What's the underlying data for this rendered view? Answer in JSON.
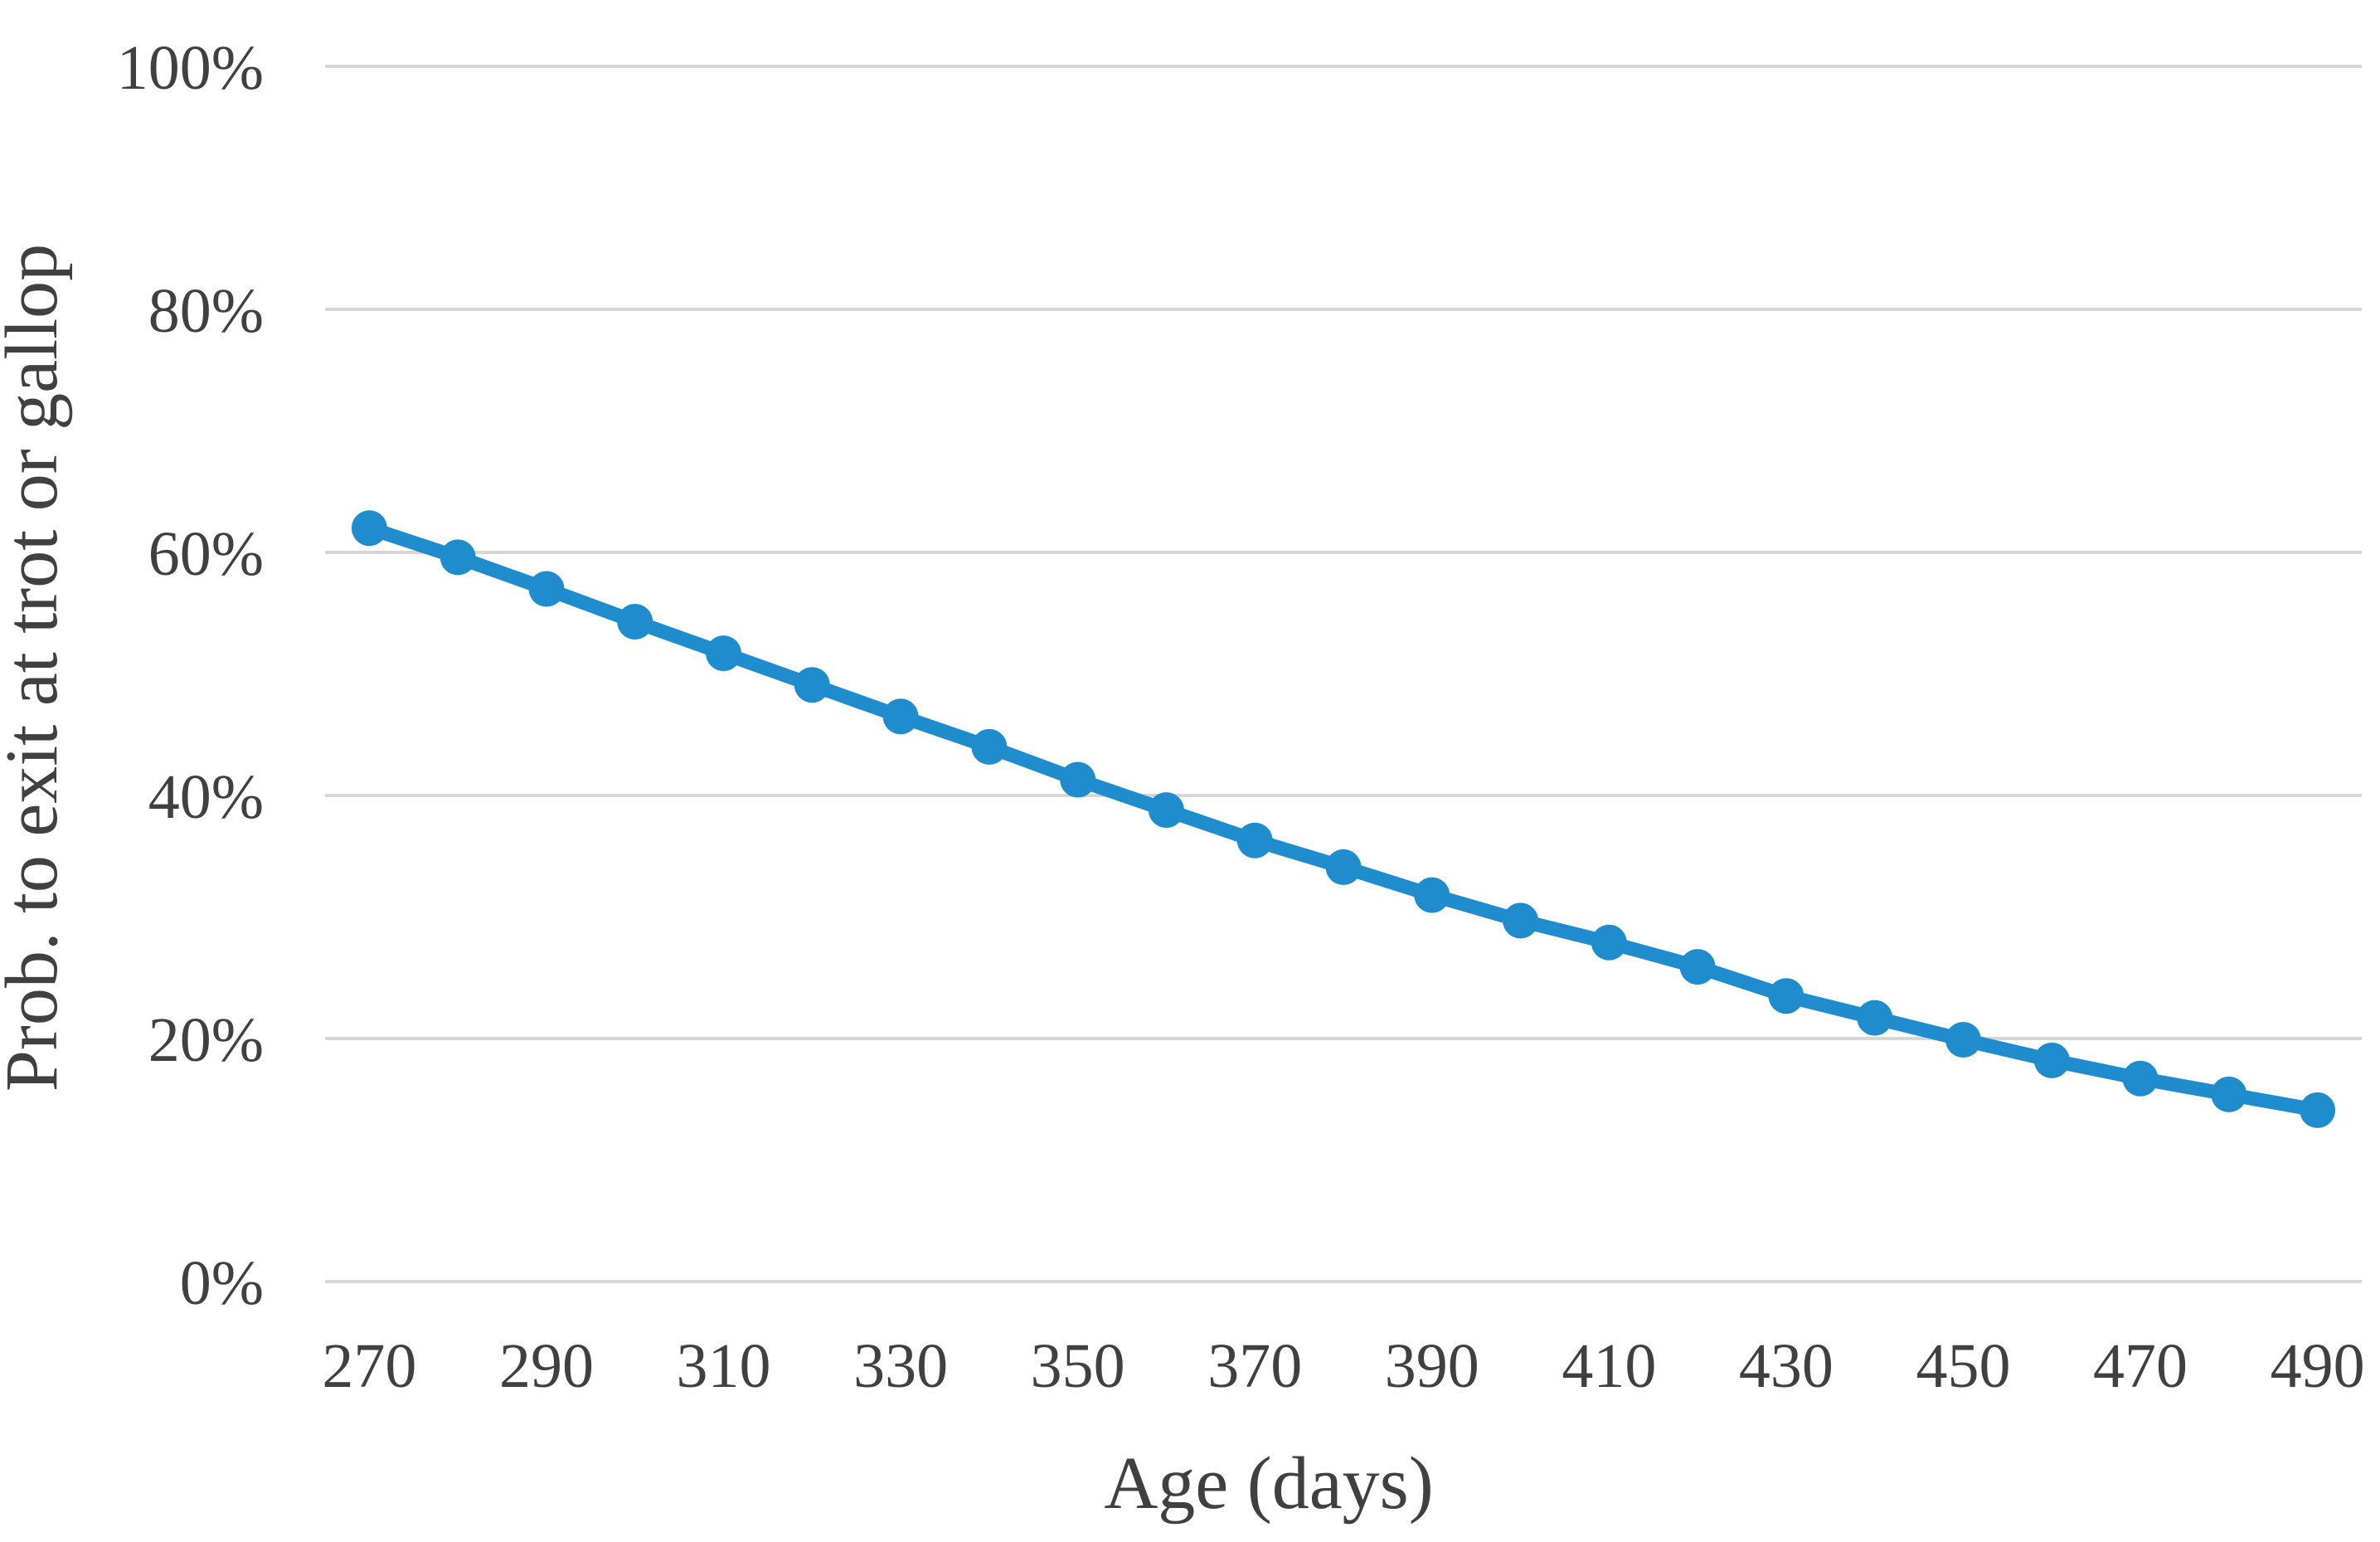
{
  "chart_data": {
    "type": "line",
    "title": "",
    "xlabel": "Age (days)",
    "ylabel": "Prob. to exit at trot or gallop",
    "x": [
      270,
      280,
      290,
      300,
      310,
      320,
      330,
      340,
      350,
      360,
      370,
      380,
      390,
      400,
      410,
      420,
      430,
      440,
      450,
      460,
      470,
      480,
      490
    ],
    "y_percent": [
      62.0,
      59.6,
      57.0,
      54.3,
      51.7,
      49.1,
      46.5,
      44.0,
      41.3,
      38.8,
      36.3,
      34.1,
      31.8,
      29.7,
      27.9,
      25.9,
      23.5,
      21.7,
      19.9,
      18.2,
      16.7,
      15.4,
      14.1
    ],
    "x_tick_labels": [
      "270",
      "290",
      "310",
      "330",
      "350",
      "370",
      "390",
      "410",
      "430",
      "450",
      "470",
      "490"
    ],
    "x_tick_values": [
      270,
      290,
      310,
      330,
      350,
      370,
      390,
      410,
      430,
      450,
      470,
      490
    ],
    "y_tick_labels": [
      "0%",
      "20%",
      "40%",
      "60%",
      "80%",
      "100%"
    ],
    "y_tick_values": [
      0,
      20,
      40,
      60,
      80,
      100
    ],
    "ylim": [
      0,
      100
    ],
    "grid": "horizontal",
    "legend": "none",
    "marker": "circle",
    "colors": {
      "series": "#1E8CCD",
      "gridline": "#D6D6D6",
      "text": "#404040"
    }
  }
}
